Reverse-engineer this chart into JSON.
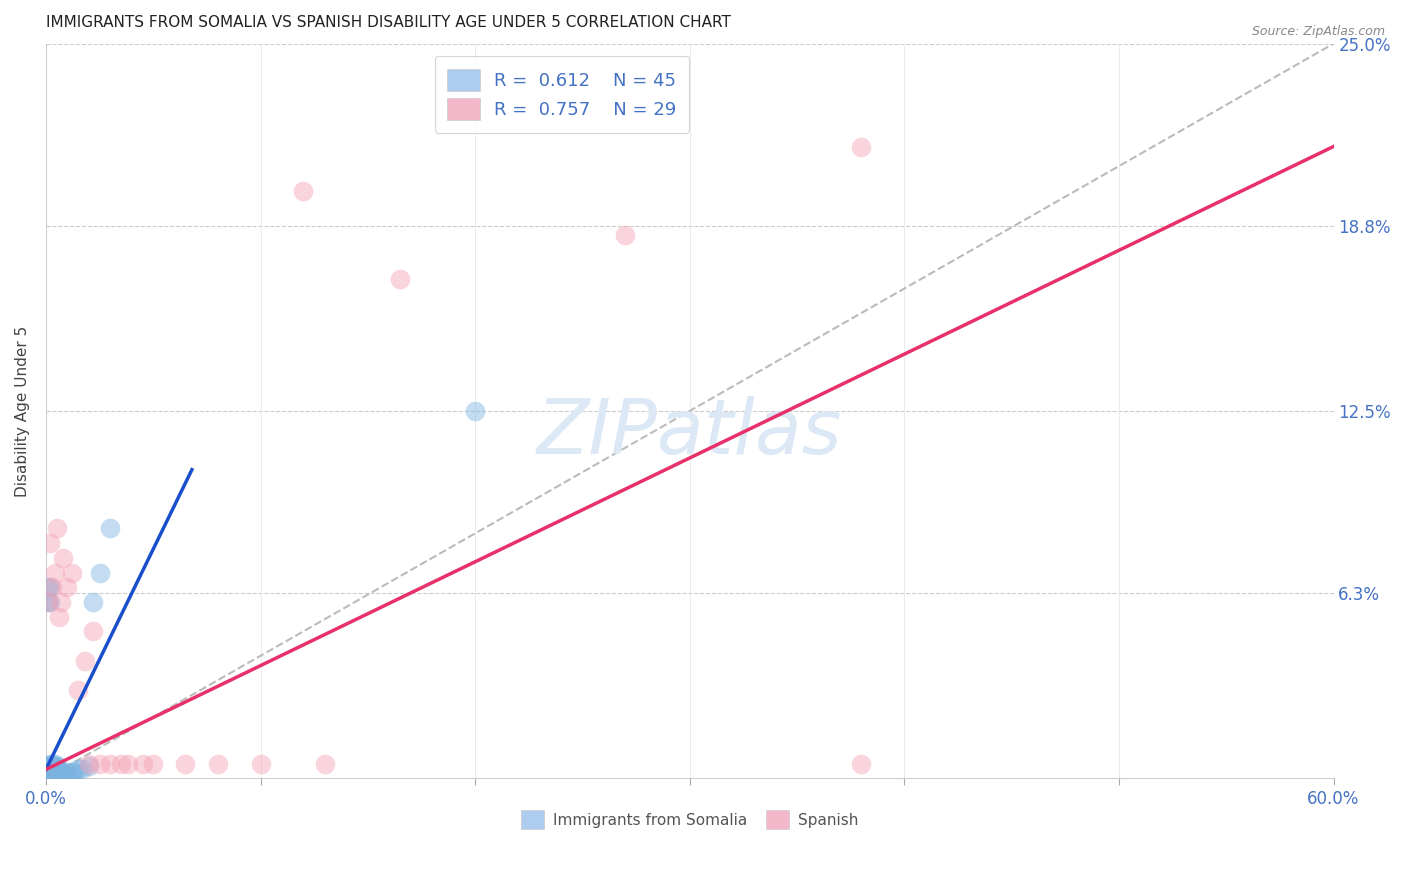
{
  "title": "IMMIGRANTS FROM SOMALIA VS SPANISH DISABILITY AGE UNDER 5 CORRELATION CHART",
  "source": "Source: ZipAtlas.com",
  "ylabel_label": "Disability Age Under 5",
  "xmin": 0.0,
  "xmax": 0.6,
  "ymin": 0.0,
  "ymax": 0.25,
  "ytick_positions": [
    0.0,
    0.063,
    0.125,
    0.188,
    0.25
  ],
  "ytick_labels": [
    "",
    "6.3%",
    "12.5%",
    "18.8%",
    "25.0%"
  ],
  "xtick_positions": [
    0.0,
    0.1,
    0.2,
    0.3,
    0.4,
    0.5,
    0.6
  ],
  "xtick_labels": [
    "0.0%",
    "",
    "",
    "",
    "",
    "",
    "60.0%"
  ],
  "somalia_color": "#7ab3e0",
  "spanish_color": "#f4a0b5",
  "somalia_line_color": "#1a4fcc",
  "spanish_line_color": "#e8306a",
  "diag_line_color": "#bbbbbb",
  "background_color": "#ffffff",
  "grid_color": "#cccccc",
  "title_fontsize": 11,
  "ylabel_fontsize": 11,
  "tick_fontsize": 12,
  "legend_fontsize": 13,
  "watermark": "ZIPatlas",
  "watermark_color": "#dce8f5",
  "watermark_fontsize": 55,
  "source_text": "Source: ZipAtlas.com",
  "legend1_label": "R =  0.612    N = 45",
  "legend2_label": "R =  0.757    N = 29",
  "legend1_color": "#aecbf0",
  "legend2_color": "#f4b8cb",
  "bottom_legend1": "Immigrants from Somalia",
  "bottom_legend2": "Spanish",
  "somalia_x": [
    0.001,
    0.001,
    0.002,
    0.002,
    0.001,
    0.003,
    0.002,
    0.001,
    0.003,
    0.002,
    0.004,
    0.003,
    0.002,
    0.004,
    0.003,
    0.005,
    0.004,
    0.003,
    0.005,
    0.004,
    0.006,
    0.005,
    0.004,
    0.006,
    0.005,
    0.007,
    0.006,
    0.008,
    0.007,
    0.009,
    0.01,
    0.011,
    0.012,
    0.013,
    0.015,
    0.017,
    0.02,
    0.022,
    0.025,
    0.03,
    0.001,
    0.001,
    0.002,
    0.002,
    0.2
  ],
  "somalia_y": [
    0.001,
    0.002,
    0.001,
    0.002,
    0.003,
    0.001,
    0.003,
    0.004,
    0.002,
    0.004,
    0.001,
    0.003,
    0.005,
    0.002,
    0.004,
    0.001,
    0.003,
    0.005,
    0.002,
    0.004,
    0.001,
    0.003,
    0.005,
    0.002,
    0.004,
    0.001,
    0.003,
    0.001,
    0.002,
    0.001,
    0.002,
    0.001,
    0.002,
    0.002,
    0.003,
    0.003,
    0.004,
    0.06,
    0.07,
    0.085,
    0.06,
    0.065,
    0.06,
    0.065,
    0.125
  ],
  "spanish_x": [
    0.001,
    0.002,
    0.003,
    0.004,
    0.005,
    0.006,
    0.007,
    0.008,
    0.01,
    0.012,
    0.015,
    0.018,
    0.022,
    0.025,
    0.03,
    0.038,
    0.05,
    0.065,
    0.08,
    0.1,
    0.13,
    0.165,
    0.27,
    0.38,
    0.02,
    0.035,
    0.045,
    0.38,
    0.12
  ],
  "spanish_y": [
    0.06,
    0.08,
    0.065,
    0.07,
    0.085,
    0.055,
    0.06,
    0.075,
    0.065,
    0.07,
    0.03,
    0.04,
    0.05,
    0.005,
    0.005,
    0.005,
    0.005,
    0.005,
    0.005,
    0.005,
    0.005,
    0.17,
    0.185,
    0.215,
    0.005,
    0.005,
    0.005,
    0.005,
    0.2
  ],
  "somalia_line_x": [
    0.0,
    0.068
  ],
  "somalia_line_y": [
    0.003,
    0.105
  ],
  "spanish_line_x": [
    0.0,
    0.6
  ],
  "spanish_line_y": [
    0.003,
    0.215
  ],
  "diag_line_x": [
    0.0,
    0.6
  ],
  "diag_line_y": [
    0.0,
    0.25
  ]
}
